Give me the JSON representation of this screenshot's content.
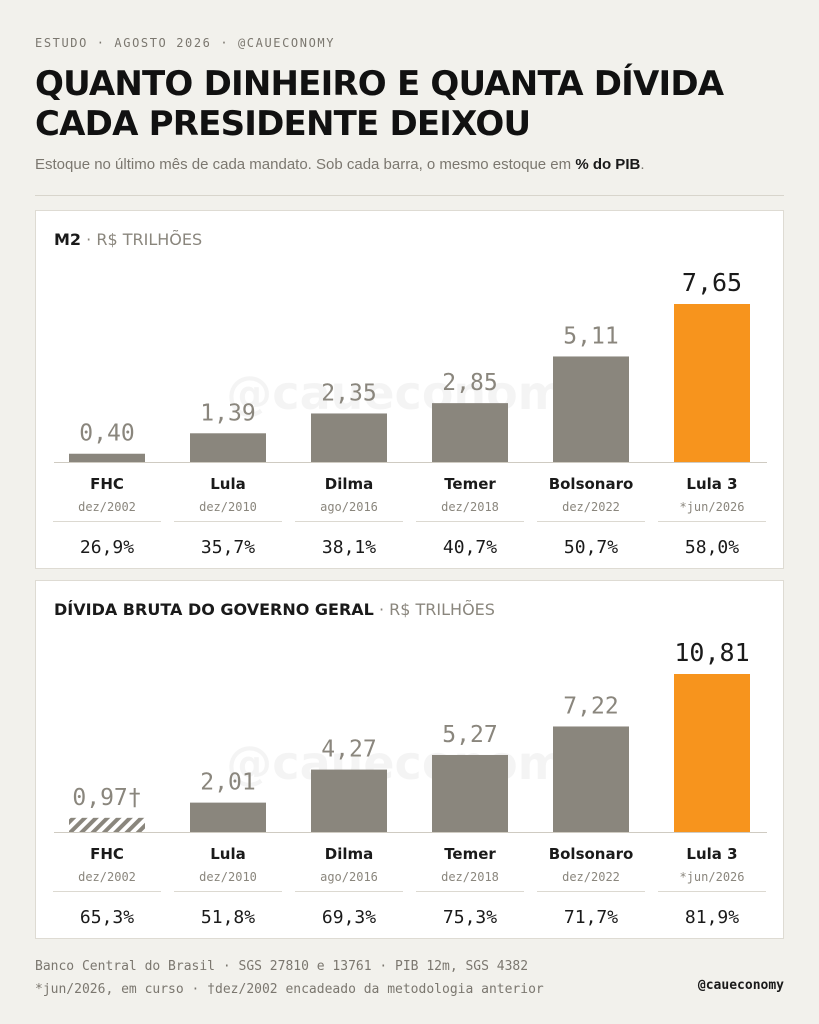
{
  "header": {
    "eyebrow": "ESTUDO · AGOSTO 2026 · @CAUECONOMY",
    "title_line1": "QUANTO DINHEIRO E QUANTA DÍVIDA",
    "title_line2": "CADA PRESIDENTE DEIXOU",
    "subtitle_prefix": "Estoque no último mês de cada mandato. Sob cada barra, o mesmo estoque em ",
    "subtitle_bold": "% do PIB",
    "subtitle_suffix": "."
  },
  "watermark": "@caueconomy",
  "colors": {
    "bar_gray": "#8a867d",
    "bar_highlight": "#f7941d",
    "value_gray": "#8a867d",
    "value_highlight": "#1a1a1a"
  },
  "chart_data": [
    {
      "type": "bar",
      "title": "M2",
      "unit": "R$ TRILHÕES",
      "categories": [
        "FHC",
        "Lula",
        "Dilma",
        "Temer",
        "Bolsonaro",
        "Lula 3"
      ],
      "dates": [
        "dez/2002",
        "dez/2010",
        "ago/2016",
        "dez/2018",
        "dez/2022",
        "*jun/2026"
      ],
      "values": [
        0.4,
        1.39,
        2.35,
        2.85,
        5.11,
        7.65
      ],
      "value_labels": [
        "0,40",
        "1,39",
        "2,35",
        "2,85",
        "5,11",
        "7,65"
      ],
      "pct_gdp": [
        "26,9%",
        "35,7%",
        "38,1%",
        "40,7%",
        "50,7%",
        "58,0%"
      ],
      "highlight_index": 5,
      "ylim": [
        0,
        7.65
      ]
    },
    {
      "type": "bar",
      "title": "DÍVIDA BRUTA DO GOVERNO GERAL",
      "unit": "R$ TRILHÕES",
      "categories": [
        "FHC",
        "Lula",
        "Dilma",
        "Temer",
        "Bolsonaro",
        "Lula 3"
      ],
      "dates": [
        "dez/2002",
        "dez/2010",
        "ago/2016",
        "dez/2018",
        "dez/2022",
        "*jun/2026"
      ],
      "values": [
        0.97,
        2.01,
        4.27,
        5.27,
        7.22,
        10.81
      ],
      "value_labels": [
        "0,97†",
        "2,01",
        "4,27",
        "5,27",
        "7,22",
        "10,81"
      ],
      "pct_gdp": [
        "65,3%",
        "51,8%",
        "69,3%",
        "75,3%",
        "71,7%",
        "81,9%"
      ],
      "highlight_index": 5,
      "hatched_index": 0,
      "ylim": [
        0,
        10.81
      ]
    }
  ],
  "footer": {
    "line1": "Banco Central do Brasil · SGS 27810 e 13761 · PIB 12m, SGS 4382",
    "line2": "*jun/2026, em curso  ·  †dez/2002 encadeado da metodologia anterior",
    "handle": "@caueconomy"
  }
}
